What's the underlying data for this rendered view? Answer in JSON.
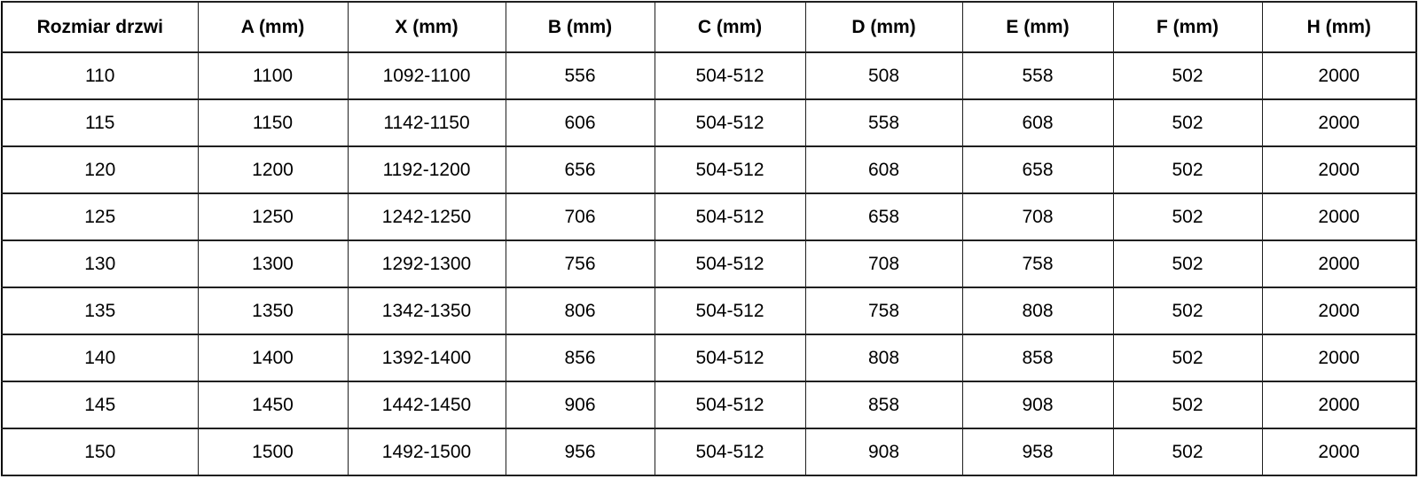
{
  "table": {
    "columns": [
      "Rozmiar drzwi",
      "A (mm)",
      "X (mm)",
      "B (mm)",
      "C (mm)",
      "D (mm)",
      "E (mm)",
      "F (mm)",
      "H (mm)"
    ],
    "rows": [
      [
        "110",
        "1100",
        "1092-1100",
        "556",
        "504-512",
        "508",
        "558",
        "502",
        "2000"
      ],
      [
        "115",
        "1150",
        "1142-1150",
        "606",
        "504-512",
        "558",
        "608",
        "502",
        "2000"
      ],
      [
        "120",
        "1200",
        "1192-1200",
        "656",
        "504-512",
        "608",
        "658",
        "502",
        "2000"
      ],
      [
        "125",
        "1250",
        "1242-1250",
        "706",
        "504-512",
        "658",
        "708",
        "502",
        "2000"
      ],
      [
        "130",
        "1300",
        "1292-1300",
        "756",
        "504-512",
        "708",
        "758",
        "502",
        "2000"
      ],
      [
        "135",
        "1350",
        "1342-1350",
        "806",
        "504-512",
        "758",
        "808",
        "502",
        "2000"
      ],
      [
        "140",
        "1400",
        "1392-1400",
        "856",
        "504-512",
        "808",
        "858",
        "502",
        "2000"
      ],
      [
        "145",
        "1450",
        "1442-1450",
        "906",
        "504-512",
        "858",
        "908",
        "502",
        "2000"
      ],
      [
        "150",
        "1500",
        "1492-1500",
        "956",
        "504-512",
        "908",
        "958",
        "502",
        "2000"
      ]
    ]
  },
  "chart_data": {
    "type": "table",
    "columns": [
      "Rozmiar drzwi",
      "A (mm)",
      "X (mm)",
      "B (mm)",
      "C (mm)",
      "D (mm)",
      "E (mm)",
      "F (mm)",
      "H (mm)"
    ],
    "rows": [
      [
        "110",
        "1100",
        "1092-1100",
        "556",
        "504-512",
        "508",
        "558",
        "502",
        "2000"
      ],
      [
        "115",
        "1150",
        "1142-1150",
        "606",
        "504-512",
        "558",
        "608",
        "502",
        "2000"
      ],
      [
        "120",
        "1200",
        "1192-1200",
        "656",
        "504-512",
        "608",
        "658",
        "502",
        "2000"
      ],
      [
        "125",
        "1250",
        "1242-1250",
        "706",
        "504-512",
        "658",
        "708",
        "502",
        "2000"
      ],
      [
        "130",
        "1300",
        "1292-1300",
        "756",
        "504-512",
        "708",
        "758",
        "502",
        "2000"
      ],
      [
        "135",
        "1350",
        "1342-1350",
        "806",
        "504-512",
        "758",
        "808",
        "502",
        "2000"
      ],
      [
        "140",
        "1400",
        "1392-1400",
        "856",
        "504-512",
        "808",
        "858",
        "502",
        "2000"
      ],
      [
        "145",
        "1450",
        "1442-1450",
        "906",
        "504-512",
        "858",
        "908",
        "502",
        "2000"
      ],
      [
        "150",
        "1500",
        "1492-1500",
        "956",
        "504-512",
        "908",
        "958",
        "502",
        "2000"
      ]
    ]
  },
  "colors": {
    "background": "#ffffff",
    "border": "#1f1f1f",
    "text": "#000000"
  }
}
